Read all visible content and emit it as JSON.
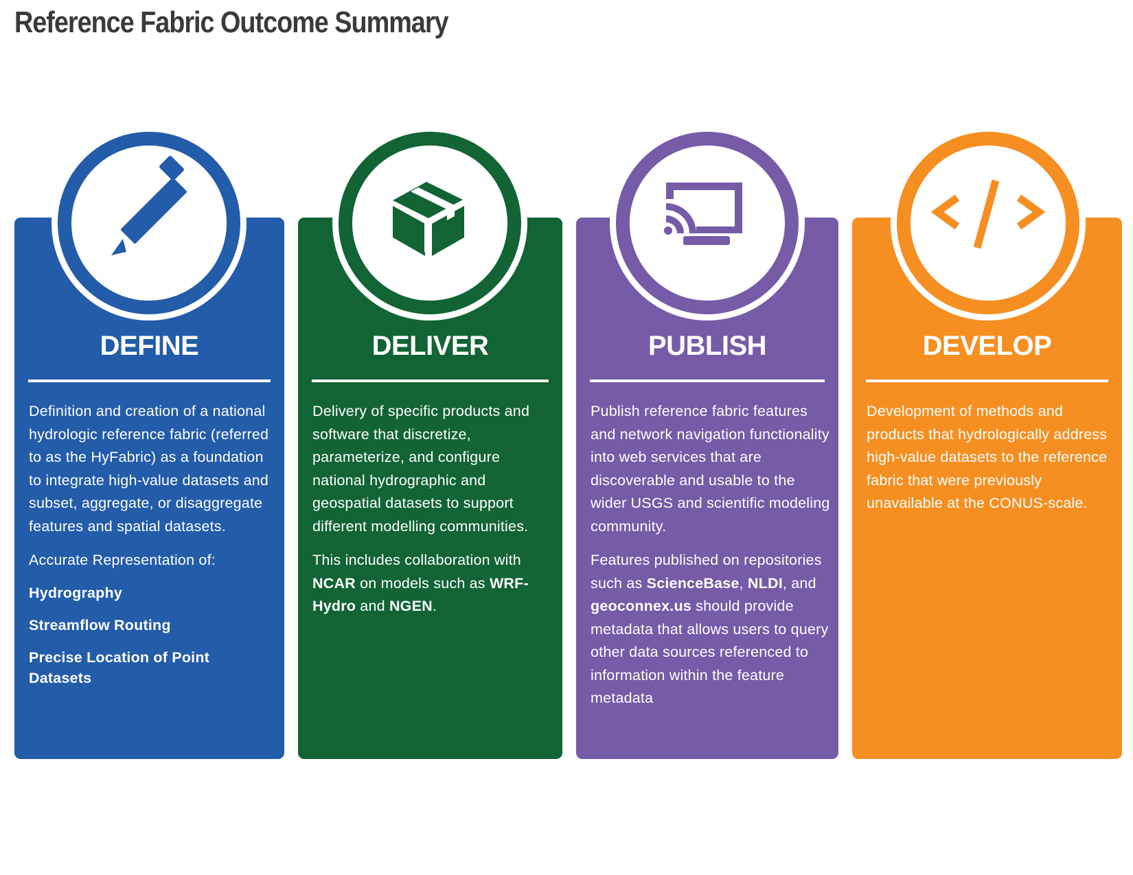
{
  "title": "Reference Fabric Outcome Summary",
  "colors": {
    "define": "#235ca8",
    "deliver": "#126434",
    "publish": "#765ba7",
    "develop": "#f58f22"
  },
  "cards": [
    {
      "key": "define",
      "icon": "pencil-icon",
      "title": "DEFINE",
      "p1": "Definition and creation of a national hydrologic reference fabric (referred to as the HyFabric) as a foundation to integrate high-value datasets and subset, aggregate, or disaggregate features and spatial datasets.",
      "p2": "Accurate Representation of:",
      "items": [
        "Hydrography",
        "Streamflow Routing",
        "Precise Location of Point Datasets"
      ]
    },
    {
      "key": "deliver",
      "icon": "package-box-icon",
      "title": "DELIVER",
      "p1": "Delivery of specific products and software that discretize, parameterize, and configure national hydrographic and geospatial datasets to support different modelling communities.",
      "p2_parts": [
        "This includes collaboration with ",
        "NCAR",
        " on models such as ",
        "WRF-Hydro",
        " and ",
        "NGEN",
        "."
      ]
    },
    {
      "key": "publish",
      "icon": "cast-screen-icon",
      "title": "PUBLISH",
      "p1": "Publish reference fabric features and network navigation functionality into web services that are discoverable and usable to the wider USGS and scientific modeling community.",
      "p2_parts": [
        "Features published on repositories such as ",
        "ScienceBase",
        ", ",
        "NLDI",
        ", and ",
        "geoconnex.us",
        " should provide metadata that allows users to query other data sources referenced to information within the feature metadata"
      ]
    },
    {
      "key": "develop",
      "icon": "code-brackets-icon",
      "title": "DEVELOP",
      "p1": "Development of methods and products that hydrologically address high-value datasets to the reference fabric that were previously unavailable at the CONUS-scale."
    }
  ]
}
